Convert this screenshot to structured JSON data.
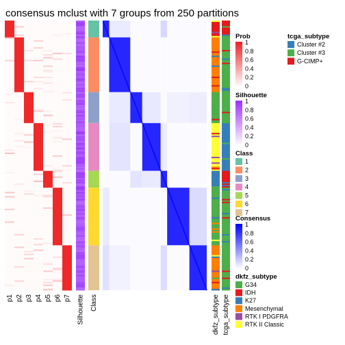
{
  "chart_data": {
    "type": "heatmap",
    "title": "consensus mclust with 7 groups from 250 partitions",
    "class_counts": [
      12,
      39,
      22,
      34,
      12,
      41,
      32
    ],
    "membership_columns": [
      "p1",
      "p2",
      "p3",
      "p4",
      "p5",
      "p6",
      "p7"
    ],
    "annotation_columns": [
      "Silhouette",
      "Class"
    ],
    "subtype_columns": [
      "dkfz_subtype",
      "tcga_subtype"
    ],
    "legends": {
      "prob": {
        "title": "Prob",
        "ticks": [
          "1",
          "0.8",
          "0.6",
          "0.4",
          "0.2",
          "0"
        ],
        "low": "#ffffff",
        "high": "#ee2222"
      },
      "silhouette": {
        "title": "Silhouette",
        "ticks": [
          "1",
          "0.8",
          "0.6",
          "0.4",
          "0.2",
          "0"
        ],
        "low": "#ffffff",
        "high": "#9b30ff"
      },
      "class": {
        "title": "Class",
        "items": [
          {
            "label": "1",
            "color": "#66c2a5"
          },
          {
            "label": "2",
            "color": "#fc8d62"
          },
          {
            "label": "3",
            "color": "#8da0cb"
          },
          {
            "label": "4",
            "color": "#e78ac3"
          },
          {
            "label": "5",
            "color": "#a6d854"
          },
          {
            "label": "6",
            "color": "#ffd92f"
          },
          {
            "label": "7",
            "color": "#e5c494"
          }
        ]
      },
      "consensus": {
        "title": "Consensus",
        "ticks": [
          "1",
          "0.8",
          "0.6",
          "0.4",
          "0.2",
          "0"
        ],
        "low": "#ffffff",
        "high": "#0000ff"
      },
      "dkfz_subtype": {
        "title": "dkfz_subtype",
        "items": [
          {
            "label": "G34",
            "color": "#4daf4a"
          },
          {
            "label": "IDH",
            "color": "#e41a1c"
          },
          {
            "label": "K27",
            "color": "#377eb8"
          },
          {
            "label": "Mesenchymal",
            "color": "#ff7f00"
          },
          {
            "label": "RTK I PDGFRA",
            "color": "#984ea3"
          },
          {
            "label": "RTK II Classic",
            "color": "#ffff33"
          }
        ]
      },
      "tcga_subtype": {
        "title": "tcga_subtype",
        "items": [
          {
            "label": "Cluster #2",
            "color": "#377eb8"
          },
          {
            "label": "Cluster #3",
            "color": "#4daf4a"
          },
          {
            "label": "G-CIMP+",
            "color": "#e41a1c"
          }
        ]
      }
    },
    "dkfz_dominant_by_class": [
      "IDH",
      "Mesenchymal",
      "G34",
      "RTK II Classic",
      "K27",
      "G34",
      "Mesenchymal"
    ],
    "tcga_dominant_by_class": [
      "G-CIMP+",
      "Cluster #3",
      "Cluster #3",
      "Cluster #2",
      "G-CIMP+",
      "Cluster #3",
      "Cluster #3"
    ]
  }
}
